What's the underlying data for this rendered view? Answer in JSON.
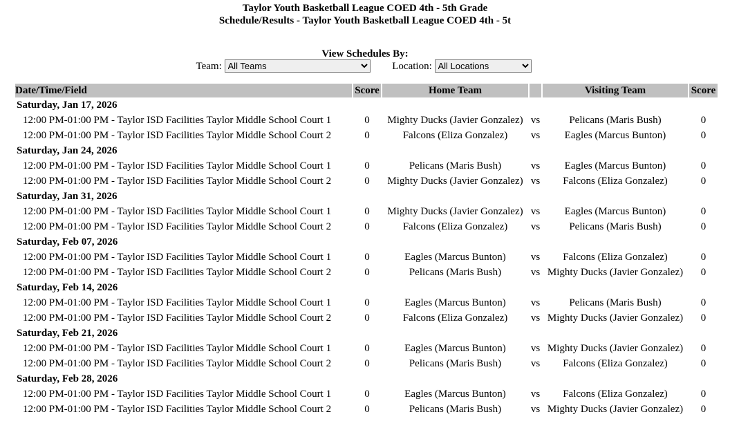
{
  "title": "Taylor Youth Basketball League COED 4th - 5th Grade",
  "subtitle": "Schedule/Results - Taylor Youth Basketball League COED 4th - 5t",
  "filters": {
    "heading": "View Schedules By:",
    "team_label": "Team:",
    "team_value": "All Teams",
    "location_label": "Location:",
    "location_value": "All Locations"
  },
  "columns": [
    "Date/Time/Field",
    "Score",
    "Home Team",
    "",
    "Visiting Team",
    "Score"
  ],
  "days": [
    {
      "date": "Saturday, Jan 17, 2026",
      "games": [
        [
          "12:00 PM-01:00 PM - Taylor ISD Facilities Taylor Middle School Court 1",
          "0",
          "Mighty Ducks (Javier Gonzalez)",
          "vs",
          "Pelicans (Maris Bush)",
          "0"
        ],
        [
          "12:00 PM-01:00 PM - Taylor ISD Facilities Taylor Middle School Court 2",
          "0",
          "Falcons (Eliza Gonzalez)",
          "vs",
          "Eagles (Marcus Bunton)",
          "0"
        ]
      ]
    },
    {
      "date": "Saturday, Jan 24, 2026",
      "games": [
        [
          "12:00 PM-01:00 PM - Taylor ISD Facilities Taylor Middle School Court 1",
          "0",
          "Pelicans (Maris Bush)",
          "vs",
          "Eagles (Marcus Bunton)",
          "0"
        ],
        [
          "12:00 PM-01:00 PM - Taylor ISD Facilities Taylor Middle School Court 2",
          "0",
          "Mighty Ducks (Javier Gonzalez)",
          "vs",
          "Falcons (Eliza Gonzalez)",
          "0"
        ]
      ]
    },
    {
      "date": "Saturday, Jan 31, 2026",
      "games": [
        [
          "12:00 PM-01:00 PM - Taylor ISD Facilities Taylor Middle School Court 1",
          "0",
          "Mighty Ducks (Javier Gonzalez)",
          "vs",
          "Eagles (Marcus Bunton)",
          "0"
        ],
        [
          "12:00 PM-01:00 PM - Taylor ISD Facilities Taylor Middle School Court 2",
          "0",
          "Falcons (Eliza Gonzalez)",
          "vs",
          "Pelicans (Maris Bush)",
          "0"
        ]
      ]
    },
    {
      "date": "Saturday, Feb 07, 2026",
      "games": [
        [
          "12:00 PM-01:00 PM - Taylor ISD Facilities Taylor Middle School Court 1",
          "0",
          "Eagles (Marcus Bunton)",
          "vs",
          "Falcons (Eliza Gonzalez)",
          "0"
        ],
        [
          "12:00 PM-01:00 PM - Taylor ISD Facilities Taylor Middle School Court 2",
          "0",
          "Pelicans (Maris Bush)",
          "vs",
          "Mighty Ducks (Javier Gonzalez)",
          "0"
        ]
      ]
    },
    {
      "date": "Saturday, Feb 14, 2026",
      "games": [
        [
          "12:00 PM-01:00 PM - Taylor ISD Facilities Taylor Middle School Court 1",
          "0",
          "Eagles (Marcus Bunton)",
          "vs",
          "Pelicans (Maris Bush)",
          "0"
        ],
        [
          "12:00 PM-01:00 PM - Taylor ISD Facilities Taylor Middle School Court 2",
          "0",
          "Falcons (Eliza Gonzalez)",
          "vs",
          "Mighty Ducks (Javier Gonzalez)",
          "0"
        ]
      ]
    },
    {
      "date": "Saturday, Feb 21, 2026",
      "games": [
        [
          "12:00 PM-01:00 PM - Taylor ISD Facilities Taylor Middle School Court 1",
          "0",
          "Eagles (Marcus Bunton)",
          "vs",
          "Mighty Ducks (Javier Gonzalez)",
          "0"
        ],
        [
          "12:00 PM-01:00 PM - Taylor ISD Facilities Taylor Middle School Court 2",
          "0",
          "Pelicans (Maris Bush)",
          "vs",
          "Falcons (Eliza Gonzalez)",
          "0"
        ]
      ]
    },
    {
      "date": "Saturday, Feb 28, 2026",
      "games": [
        [
          "12:00 PM-01:00 PM - Taylor ISD Facilities Taylor Middle School Court 1",
          "0",
          "Eagles (Marcus Bunton)",
          "vs",
          "Falcons (Eliza Gonzalez)",
          "0"
        ],
        [
          "12:00 PM-01:00 PM - Taylor ISD Facilities Taylor Middle School Court 2",
          "0",
          "Pelicans (Maris Bush)",
          "vs",
          "Mighty Ducks (Javier Gonzalez)",
          "0"
        ]
      ]
    }
  ]
}
